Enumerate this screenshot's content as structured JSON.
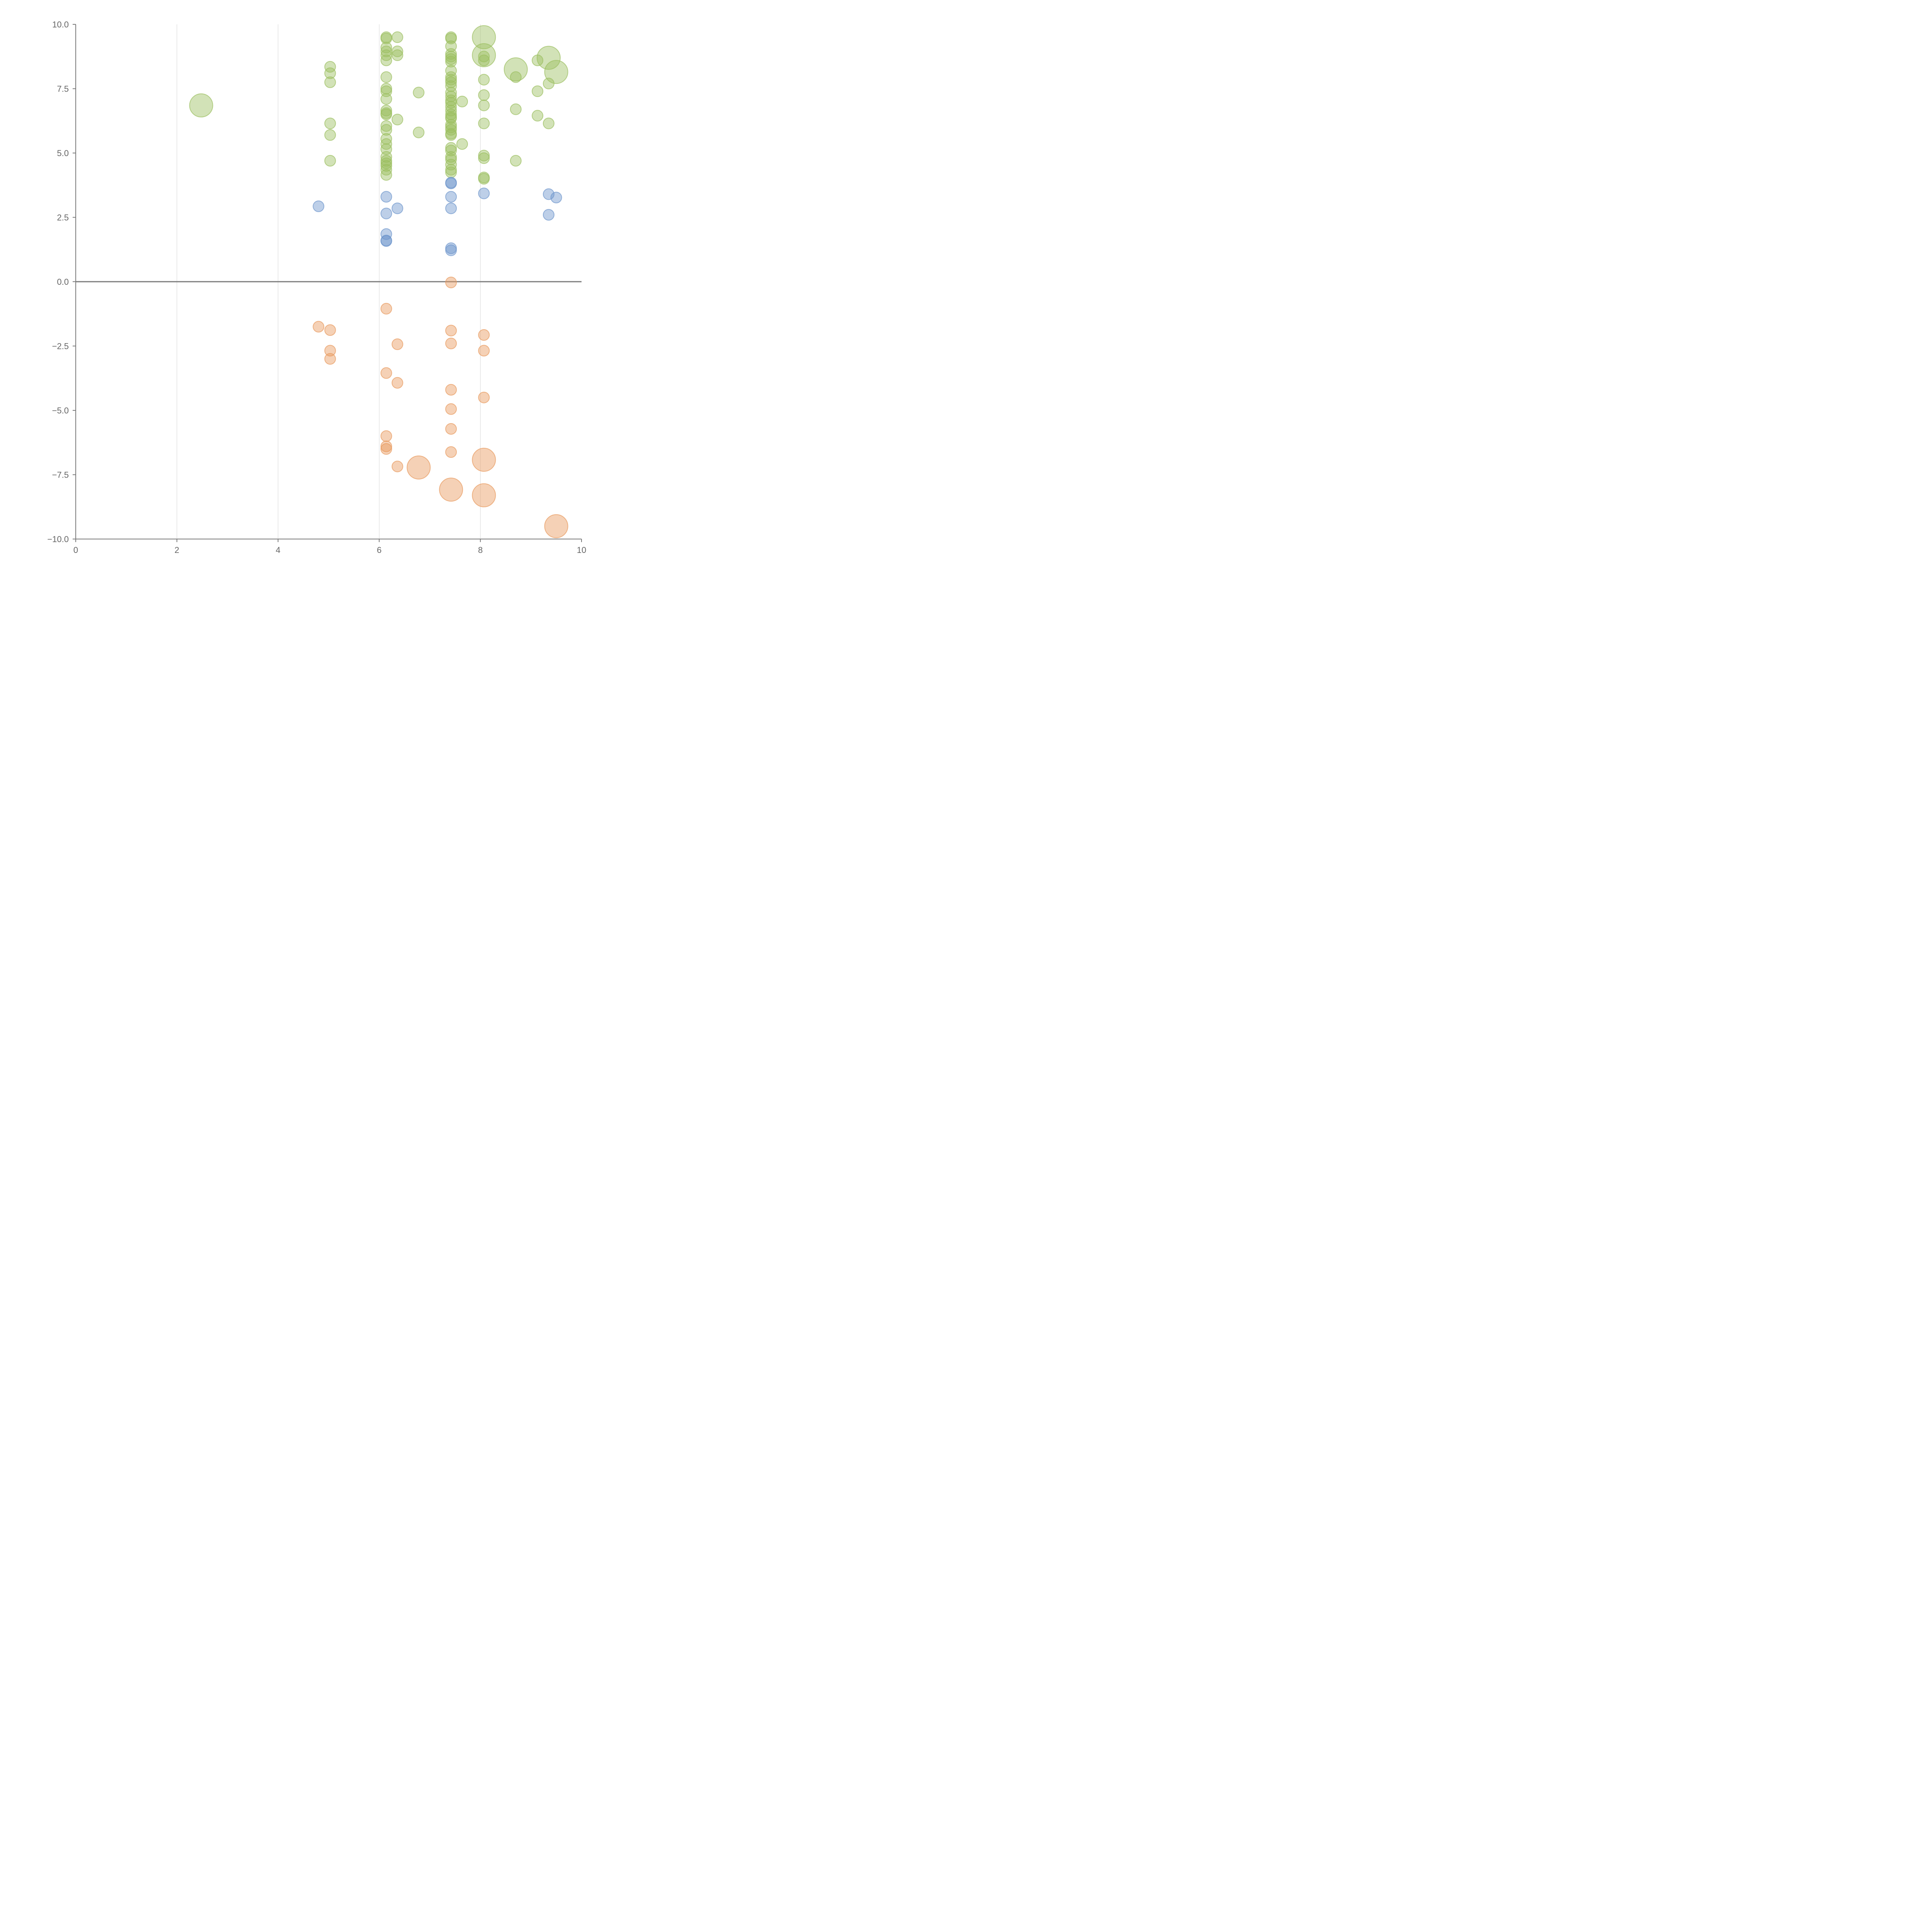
{
  "chart_data": {
    "type": "scatter",
    "title": "",
    "xlabel": "",
    "ylabel": "",
    "xlim": [
      0,
      10
    ],
    "ylim": [
      -10,
      10
    ],
    "x_ticks": [
      "0",
      "2",
      "4",
      "6",
      "8",
      "10"
    ],
    "y_ticks": [
      "10.0",
      "7.5",
      "5.0",
      "2.5",
      "0.0",
      "−2.5",
      "−5.0",
      "−7.5",
      "−10.0"
    ],
    "grid": "vertical",
    "colors": {
      "green": "#9bbf60",
      "blue": "#6d95cc",
      "orange": "#e89a5e"
    },
    "series": [
      {
        "color": "#9bbf60",
        "points": [
          {
            "x": 2.48,
            "y": 6.85,
            "s": 2
          },
          {
            "x": 5.03,
            "y": 8.35
          },
          {
            "x": 5.03,
            "y": 8.1
          },
          {
            "x": 5.03,
            "y": 7.75
          },
          {
            "x": 5.03,
            "y": 6.15
          },
          {
            "x": 5.03,
            "y": 5.7
          },
          {
            "x": 5.03,
            "y": 4.7
          },
          {
            "x": 6.14,
            "y": 9.5
          },
          {
            "x": 6.14,
            "y": 9.45
          },
          {
            "x": 6.14,
            "y": 9.1
          },
          {
            "x": 6.14,
            "y": 8.95
          },
          {
            "x": 6.14,
            "y": 8.8
          },
          {
            "x": 6.14,
            "y": 8.6
          },
          {
            "x": 6.14,
            "y": 7.95
          },
          {
            "x": 6.14,
            "y": 7.5
          },
          {
            "x": 6.14,
            "y": 7.4
          },
          {
            "x": 6.14,
            "y": 7.1
          },
          {
            "x": 6.14,
            "y": 6.65
          },
          {
            "x": 6.14,
            "y": 6.55
          },
          {
            "x": 6.14,
            "y": 6.5
          },
          {
            "x": 6.14,
            "y": 6.05
          },
          {
            "x": 6.14,
            "y": 5.9
          },
          {
            "x": 6.14,
            "y": 5.55
          },
          {
            "x": 6.14,
            "y": 5.35
          },
          {
            "x": 6.14,
            "y": 5.15
          },
          {
            "x": 6.14,
            "y": 4.85
          },
          {
            "x": 6.14,
            "y": 4.7
          },
          {
            "x": 6.14,
            "y": 4.6
          },
          {
            "x": 6.14,
            "y": 4.5
          },
          {
            "x": 6.14,
            "y": 4.35
          },
          {
            "x": 6.14,
            "y": 4.15
          },
          {
            "x": 6.36,
            "y": 9.5
          },
          {
            "x": 6.36,
            "y": 8.95
          },
          {
            "x": 6.36,
            "y": 8.8
          },
          {
            "x": 6.36,
            "y": 6.3
          },
          {
            "x": 6.78,
            "y": 7.35
          },
          {
            "x": 6.78,
            "y": 5.8
          },
          {
            "x": 7.42,
            "y": 9.5
          },
          {
            "x": 7.42,
            "y": 9.45
          },
          {
            "x": 7.42,
            "y": 9.15
          },
          {
            "x": 7.42,
            "y": 8.85
          },
          {
            "x": 7.42,
            "y": 8.75
          },
          {
            "x": 7.42,
            "y": 8.65
          },
          {
            "x": 7.42,
            "y": 8.55
          },
          {
            "x": 7.42,
            "y": 8.2
          },
          {
            "x": 7.42,
            "y": 7.95
          },
          {
            "x": 7.42,
            "y": 7.85
          },
          {
            "x": 7.42,
            "y": 7.75
          },
          {
            "x": 7.42,
            "y": 7.6
          },
          {
            "x": 7.42,
            "y": 7.35
          },
          {
            "x": 7.42,
            "y": 7.2
          },
          {
            "x": 7.42,
            "y": 7.05
          },
          {
            "x": 7.42,
            "y": 6.95
          },
          {
            "x": 7.42,
            "y": 6.8
          },
          {
            "x": 7.42,
            "y": 6.65
          },
          {
            "x": 7.42,
            "y": 6.5
          },
          {
            "x": 7.42,
            "y": 6.4
          },
          {
            "x": 7.42,
            "y": 6.35
          },
          {
            "x": 7.42,
            "y": 6.1
          },
          {
            "x": 7.42,
            "y": 6.0
          },
          {
            "x": 7.42,
            "y": 5.9
          },
          {
            "x": 7.42,
            "y": 5.75
          },
          {
            "x": 7.42,
            "y": 5.7
          },
          {
            "x": 7.42,
            "y": 5.2
          },
          {
            "x": 7.42,
            "y": 5.1
          },
          {
            "x": 7.42,
            "y": 4.85
          },
          {
            "x": 7.42,
            "y": 4.75
          },
          {
            "x": 7.42,
            "y": 4.55
          },
          {
            "x": 7.42,
            "y": 4.35
          },
          {
            "x": 7.42,
            "y": 4.25
          },
          {
            "x": 7.64,
            "y": 7.0
          },
          {
            "x": 7.64,
            "y": 5.35
          },
          {
            "x": 8.07,
            "y": 9.5,
            "s": 2
          },
          {
            "x": 8.07,
            "y": 8.8,
            "s": 2
          },
          {
            "x": 8.07,
            "y": 8.75
          },
          {
            "x": 8.07,
            "y": 8.6
          },
          {
            "x": 8.07,
            "y": 7.85
          },
          {
            "x": 8.07,
            "y": 7.25
          },
          {
            "x": 8.07,
            "y": 6.85
          },
          {
            "x": 8.07,
            "y": 6.15
          },
          {
            "x": 8.07,
            "y": 4.9
          },
          {
            "x": 8.07,
            "y": 4.8
          },
          {
            "x": 8.07,
            "y": 4.05
          },
          {
            "x": 8.07,
            "y": 4.0
          },
          {
            "x": 8.7,
            "y": 8.25,
            "s": 2
          },
          {
            "x": 8.7,
            "y": 7.95
          },
          {
            "x": 8.7,
            "y": 6.7
          },
          {
            "x": 8.7,
            "y": 4.7
          },
          {
            "x": 9.13,
            "y": 8.6
          },
          {
            "x": 9.13,
            "y": 7.4
          },
          {
            "x": 9.13,
            "y": 6.45
          },
          {
            "x": 9.35,
            "y": 8.7,
            "s": 2
          },
          {
            "x": 9.35,
            "y": 7.7
          },
          {
            "x": 9.35,
            "y": 6.15
          },
          {
            "x": 9.5,
            "y": 8.15,
            "s": 2
          }
        ]
      },
      {
        "color": "#6d95cc",
        "points": [
          {
            "x": 4.8,
            "y": 2.93
          },
          {
            "x": 6.14,
            "y": 3.3
          },
          {
            "x": 6.14,
            "y": 2.65
          },
          {
            "x": 6.14,
            "y": 1.85
          },
          {
            "x": 6.14,
            "y": 1.6
          },
          {
            "x": 6.14,
            "y": 1.58
          },
          {
            "x": 6.36,
            "y": 2.85
          },
          {
            "x": 7.42,
            "y": 3.85
          },
          {
            "x": 7.42,
            "y": 3.82
          },
          {
            "x": 7.42,
            "y": 3.3
          },
          {
            "x": 7.42,
            "y": 2.85
          },
          {
            "x": 7.42,
            "y": 1.3
          },
          {
            "x": 7.42,
            "y": 1.22
          },
          {
            "x": 8.07,
            "y": 3.43
          },
          {
            "x": 9.35,
            "y": 3.4
          },
          {
            "x": 9.35,
            "y": 2.6
          },
          {
            "x": 9.5,
            "y": 3.27
          }
        ]
      },
      {
        "color": "#e89a5e",
        "points": [
          {
            "x": 4.8,
            "y": -1.75
          },
          {
            "x": 5.03,
            "y": -1.88
          },
          {
            "x": 5.03,
            "y": -2.68
          },
          {
            "x": 5.03,
            "y": -3.0
          },
          {
            "x": 6.14,
            "y": -1.05
          },
          {
            "x": 6.14,
            "y": -3.55
          },
          {
            "x": 6.14,
            "y": -6.0
          },
          {
            "x": 6.14,
            "y": -6.4
          },
          {
            "x": 6.14,
            "y": -6.5
          },
          {
            "x": 6.36,
            "y": -2.43
          },
          {
            "x": 6.36,
            "y": -3.93
          },
          {
            "x": 6.36,
            "y": -7.18
          },
          {
            "x": 6.78,
            "y": -7.22,
            "s": 2
          },
          {
            "x": 7.42,
            "y": -0.03
          },
          {
            "x": 7.42,
            "y": -1.9
          },
          {
            "x": 7.42,
            "y": -2.4
          },
          {
            "x": 7.42,
            "y": -4.2
          },
          {
            "x": 7.42,
            "y": -4.95
          },
          {
            "x": 7.42,
            "y": -5.72
          },
          {
            "x": 7.42,
            "y": -6.62
          },
          {
            "x": 7.42,
            "y": -8.08,
            "s": 2
          },
          {
            "x": 8.07,
            "y": -2.07
          },
          {
            "x": 8.07,
            "y": -2.68
          },
          {
            "x": 8.07,
            "y": -4.5
          },
          {
            "x": 8.07,
            "y": -6.92,
            "s": 2
          },
          {
            "x": 8.07,
            "y": -8.3,
            "s": 2
          },
          {
            "x": 9.5,
            "y": -9.5,
            "s": 2
          }
        ]
      }
    ]
  }
}
